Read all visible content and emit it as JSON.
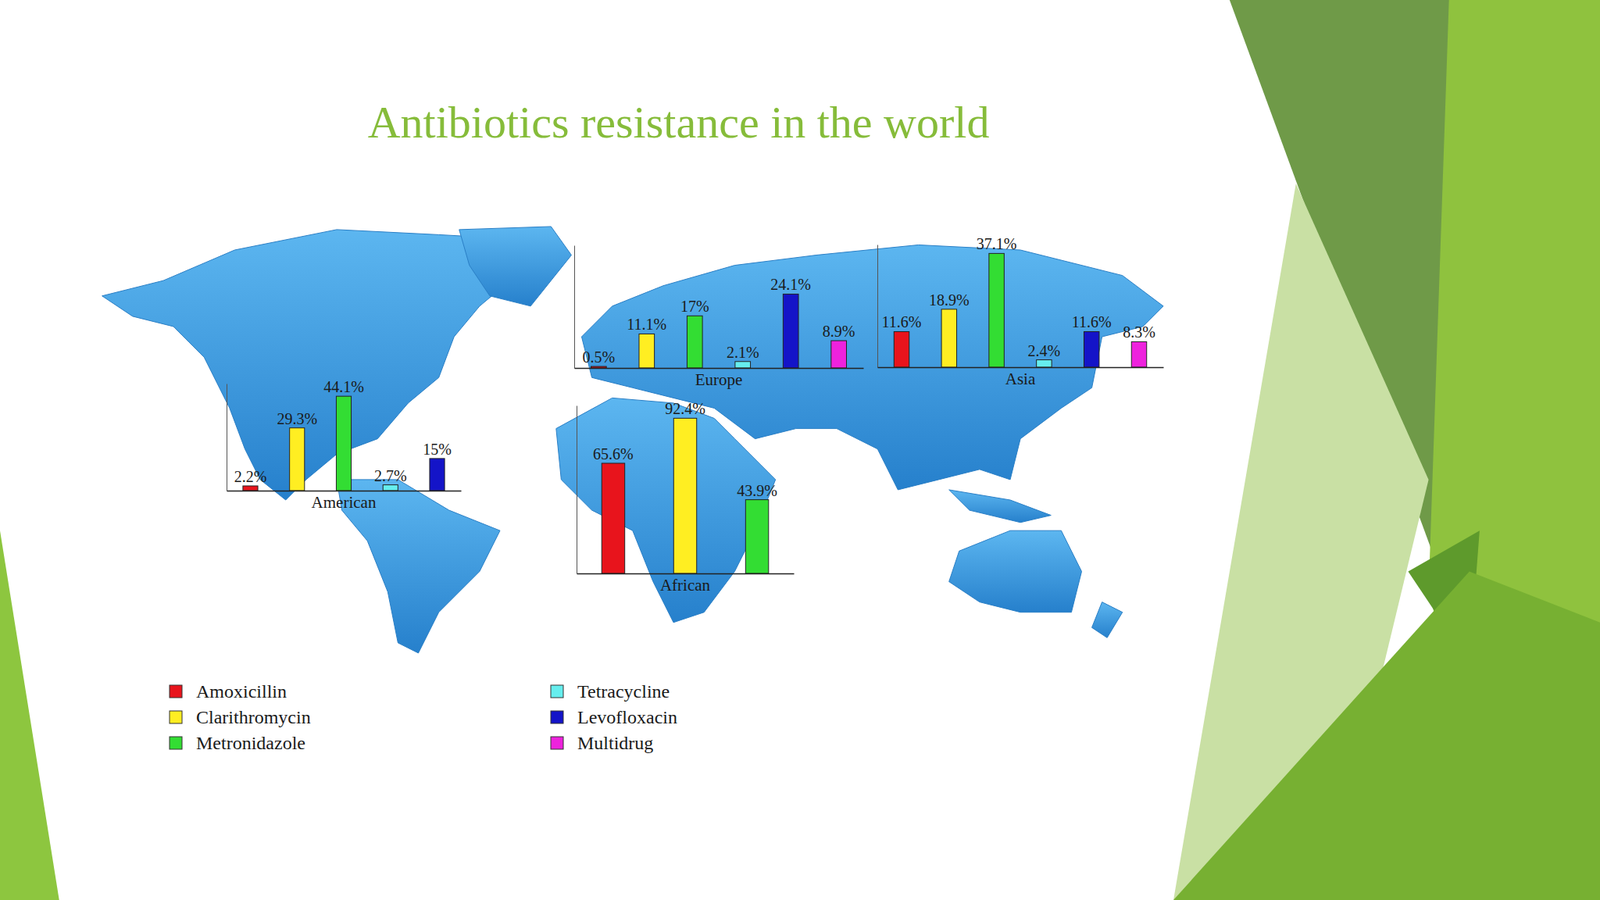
{
  "title": "Antibiotics resistance in the world",
  "legend": "bottom-left",
  "legend_entries": [
    {
      "name": "Amoxicillin",
      "color": "#e8141c"
    },
    {
      "name": "Clarithromycin",
      "color": "#ffee22"
    },
    {
      "name": "Metronidazole",
      "color": "#33dd33"
    },
    {
      "name": "Tetracycline",
      "color": "#66eeee"
    },
    {
      "name": "Levofloxacin",
      "color": "#1414c8"
    },
    {
      "name": "Multidrug",
      "color": "#ee22dd"
    }
  ],
  "chart_data": [
    {
      "type": "bar",
      "xlabel": "American",
      "categories": [
        null,
        null,
        null,
        null,
        null
      ],
      "values": [
        2.2,
        29.3,
        44.1,
        2.7,
        15
      ],
      "value_labels": [
        "2.2%",
        "29.3%",
        "44.1%",
        "2.7%",
        "15%"
      ],
      "colors": [
        "#e8141c",
        "#ffee22",
        "#33dd33",
        "#66eeee",
        "#1414c8"
      ],
      "ylim": [
        0,
        50
      ],
      "data_labels": true,
      "tick_labels": false
    },
    {
      "type": "bar",
      "xlabel": "Europe",
      "categories": [
        null,
        null,
        null,
        null,
        null,
        null
      ],
      "values": [
        0.5,
        11.1,
        17,
        2.1,
        24.1,
        8.9
      ],
      "value_labels": [
        "0.5%",
        "11.1%",
        "17%",
        "2.1%",
        "24.1%",
        "8.9%"
      ],
      "colors": [
        "#e8141c",
        "#ffee22",
        "#33dd33",
        "#66eeee",
        "#1414c8",
        "#ee22dd"
      ],
      "ylim": [
        0,
        40
      ],
      "data_labels": true,
      "tick_labels": false
    },
    {
      "type": "bar",
      "xlabel": "Asia",
      "categories": [
        null,
        null,
        null,
        null,
        null,
        null
      ],
      "values": [
        11.6,
        18.9,
        37.1,
        2.4,
        11.6,
        8.3
      ],
      "value_labels": [
        "11.6%",
        "18.9%",
        "37.1%",
        "2.4%",
        "11.6%",
        "8.3%"
      ],
      "colors": [
        "#e8141c",
        "#ffee22",
        "#33dd33",
        "#66eeee",
        "#1414c8",
        "#ee22dd"
      ],
      "ylim": [
        0,
        40
      ],
      "data_labels": true,
      "tick_labels": false
    },
    {
      "type": "bar",
      "xlabel": "African",
      "categories": [
        null,
        null,
        null
      ],
      "values": [
        65.6,
        92.4,
        43.9
      ],
      "value_labels": [
        "65.6%",
        "92.4%",
        "43.9%"
      ],
      "colors": [
        "#e8141c",
        "#ffee22",
        "#33dd33"
      ],
      "ylim": [
        0,
        100
      ],
      "data_labels": true,
      "tick_labels": false
    }
  ]
}
